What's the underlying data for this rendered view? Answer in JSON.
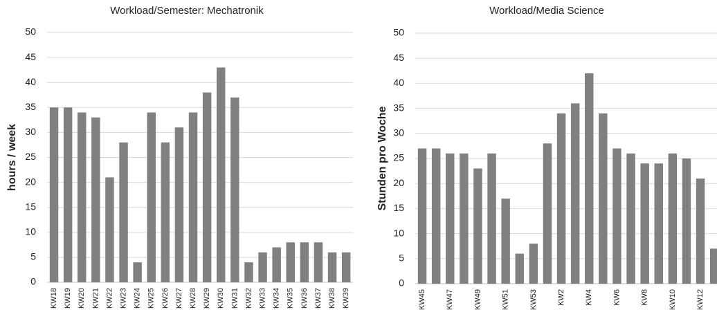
{
  "chart_data": [
    {
      "type": "bar",
      "title": "Workload/Semester: Mechatronik",
      "y_label": "hours / week",
      "categories": [
        "KW18",
        "KW19",
        "KW20",
        "KW21",
        "KW22",
        "KW23",
        "KW24",
        "KW25",
        "KW26",
        "KW27",
        "KW28",
        "KW29",
        "KW30",
        "KW31",
        "KW32",
        "KW33",
        "KW34",
        "KW35",
        "KW36",
        "KW37",
        "KW38",
        "KW39"
      ],
      "values": [
        35,
        35,
        34,
        33,
        21,
        28,
        4,
        34,
        28,
        31,
        34,
        38,
        43,
        37,
        4,
        6,
        7,
        8,
        8,
        8,
        6,
        6
      ],
      "color": "#808080",
      "ylim": [
        0,
        50
      ],
      "yticks": [
        0,
        5,
        10,
        15,
        20,
        25,
        30,
        35,
        40,
        45,
        50
      ],
      "grid": true
    },
    {
      "type": "bar",
      "title": "Workload/Media Science",
      "y_label": "Stunden pro Woche",
      "categories": [
        "KW45",
        null,
        "KW47",
        null,
        "KW49",
        null,
        "KW51",
        null,
        "KW53",
        null,
        "KW2",
        null,
        "KW4",
        null,
        "KW6",
        null,
        "KW8",
        null,
        "KW10",
        null,
        "KW12",
        null
      ],
      "values": [
        27,
        27,
        26,
        26,
        23,
        26,
        17,
        6,
        8,
        28,
        34,
        36,
        42,
        34,
        27,
        26,
        24,
        24,
        26,
        25,
        21,
        7
      ],
      "color": "#808080",
      "ylim": [
        0,
        50
      ],
      "yticks": [
        0,
        5,
        10,
        15,
        20,
        25,
        30,
        35,
        40,
        45,
        50
      ],
      "grid": true
    }
  ]
}
